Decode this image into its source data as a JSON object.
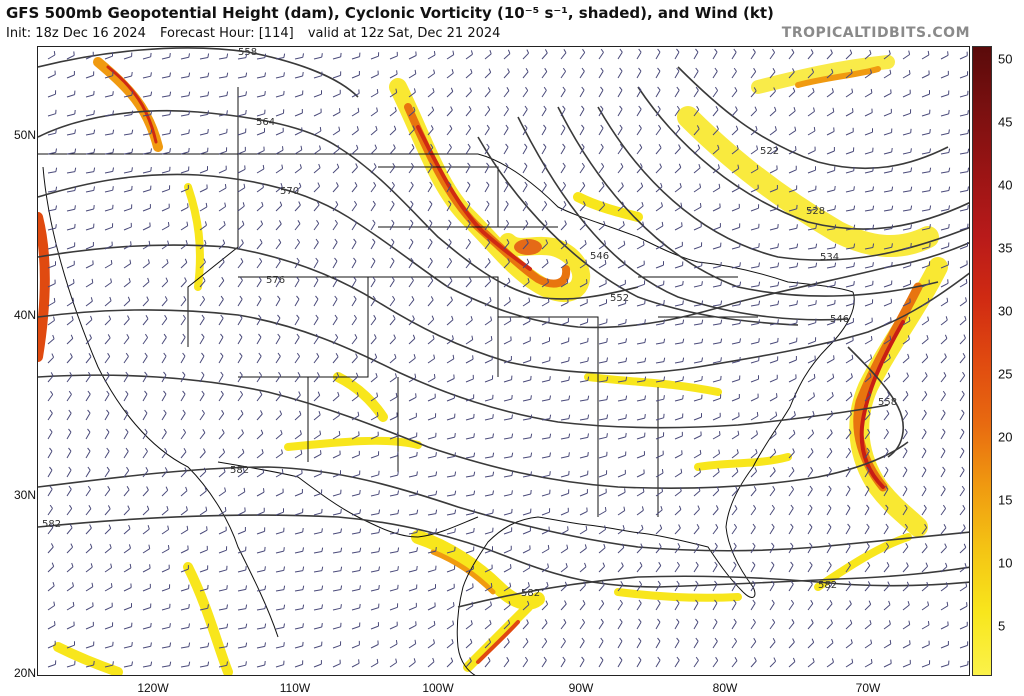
{
  "header": {
    "title": "GFS 500mb Geopotential Height (dam), Cyclonic Vorticity (10⁻⁵ s⁻¹, shaded), and Wind (kt)",
    "init": "Init: 18z Dec 16 2024",
    "forecast_hour": "Forecast Hour: [114]",
    "valid": "valid at 12z Sat, Dec 21 2024",
    "brand": "TROPICALTIDBITS.COM"
  },
  "axes": {
    "latitudes": [
      "50N",
      "40N",
      "30N",
      "20N"
    ],
    "longitudes": [
      "120W",
      "110W",
      "100W",
      "90W",
      "80W",
      "70W"
    ]
  },
  "colorbar": {
    "labels": [
      "50",
      "45",
      "40",
      "35",
      "30",
      "25",
      "20",
      "15",
      "10",
      "5"
    ],
    "colors": [
      "#5a0a0a",
      "#7a1010",
      "#9a1414",
      "#b81a1a",
      "#d02a12",
      "#e04a10",
      "#e86a10",
      "#f09a10",
      "#f4c414",
      "#f8e61c",
      "#fbf24a"
    ]
  },
  "contours": {
    "labels": [
      "558",
      "564",
      "570",
      "576",
      "582",
      "582",
      "582",
      "582",
      "522",
      "528",
      "534",
      "546",
      "546",
      "552",
      "558"
    ]
  }
}
